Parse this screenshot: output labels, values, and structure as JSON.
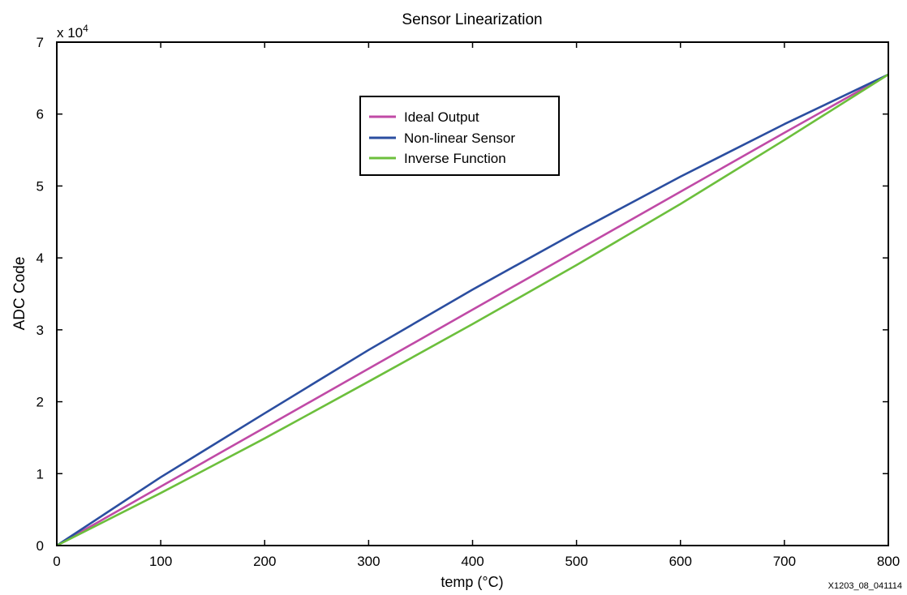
{
  "chart_data": {
    "type": "line",
    "title": "Sensor Linearization",
    "xlabel": "temp (°C)",
    "ylabel": "ADC Code",
    "y_multiplier": {
      "base": "x 10",
      "exponent": "4"
    },
    "xlim": [
      0,
      800
    ],
    "ylim": [
      0,
      7
    ],
    "x_ticks": [
      "0",
      "100",
      "200",
      "300",
      "400",
      "500",
      "600",
      "700",
      "800"
    ],
    "y_ticks": [
      "0",
      "1",
      "2",
      "3",
      "4",
      "5",
      "6",
      "7"
    ],
    "grid": false,
    "legend_position": "top-center",
    "x": [
      0,
      100,
      200,
      300,
      400,
      500,
      600,
      700,
      800
    ],
    "series": [
      {
        "name": "Ideal Output",
        "color": "#c04aa6",
        "values": [
          0,
          0.82,
          1.64,
          2.46,
          3.28,
          4.1,
          4.92,
          5.74,
          6.55
        ]
      },
      {
        "name": "Non-linear Sensor",
        "color": "#2b4ea0",
        "values": [
          0,
          0.95,
          1.84,
          2.72,
          3.56,
          4.36,
          5.13,
          5.86,
          6.55
        ]
      },
      {
        "name": "Inverse Function",
        "color": "#6cbf3c",
        "values": [
          0,
          0.73,
          1.49,
          2.28,
          3.08,
          3.9,
          4.75,
          5.64,
          6.55
        ]
      }
    ],
    "annotation": "X1203_08_041114"
  }
}
